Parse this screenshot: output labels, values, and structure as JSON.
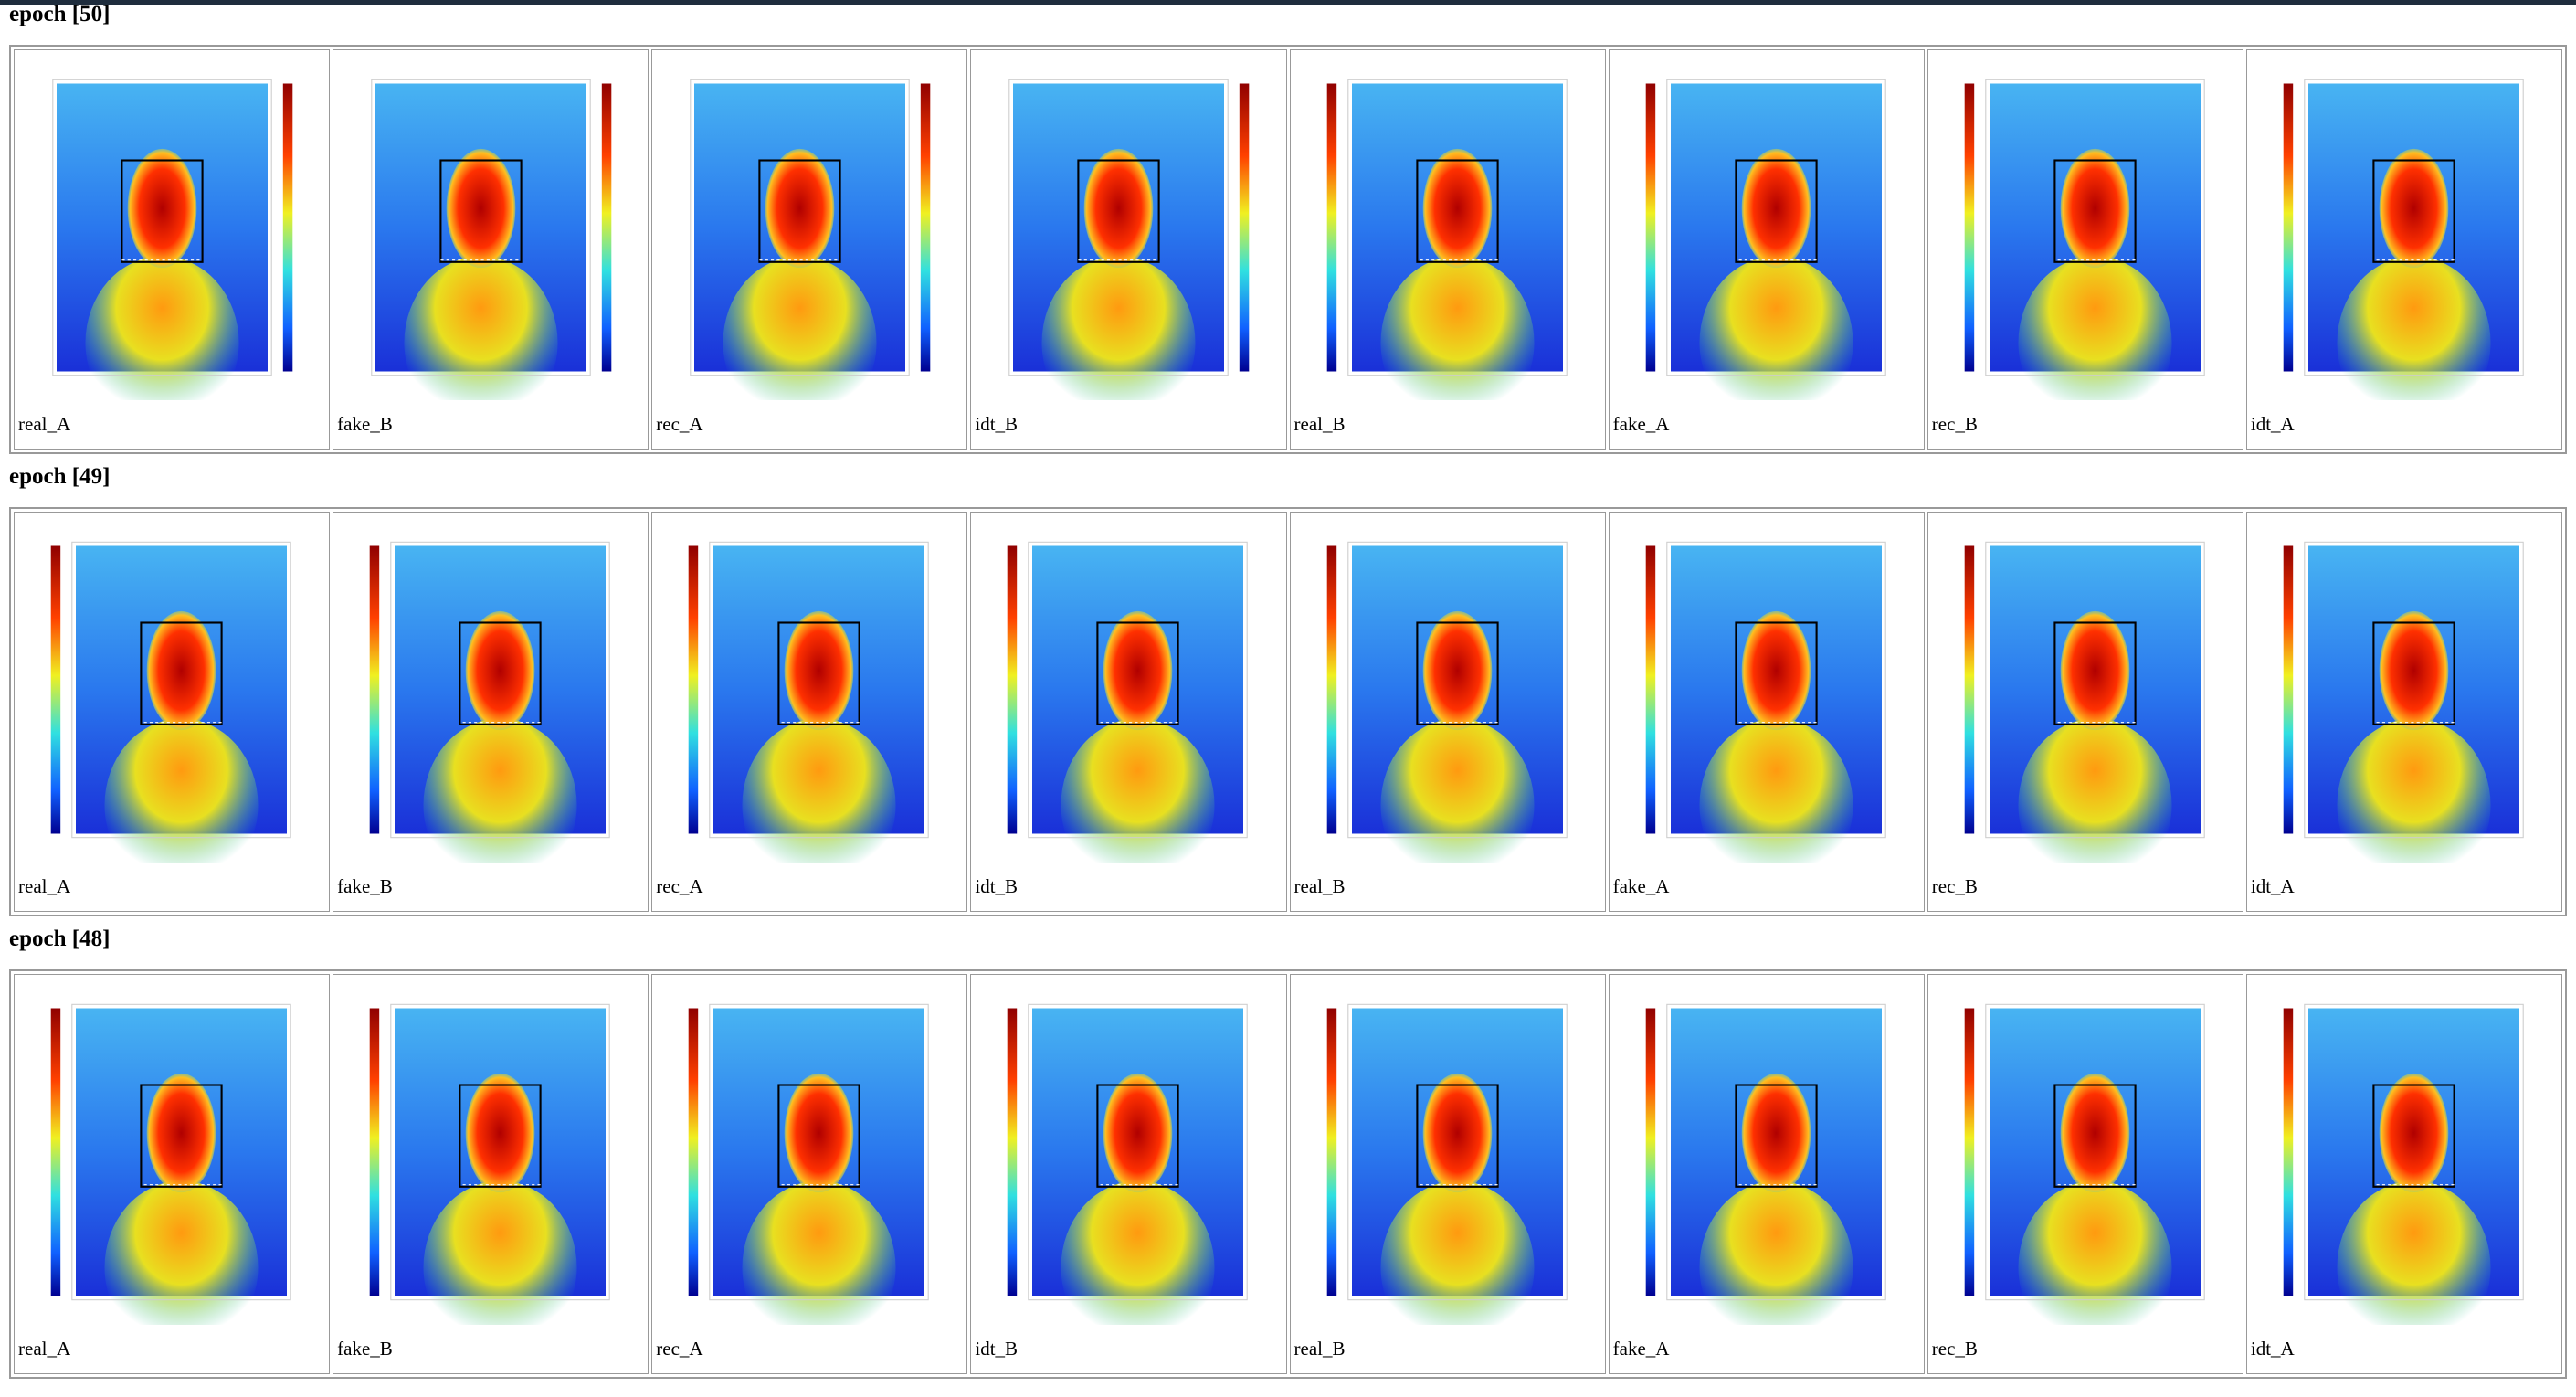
{
  "sections": [
    {
      "title": "epoch [50]",
      "images": [
        {
          "label": "real_A"
        },
        {
          "label": "fake_B"
        },
        {
          "label": "rec_A"
        },
        {
          "label": "idt_B"
        },
        {
          "label": "real_B"
        },
        {
          "label": "fake_A"
        },
        {
          "label": "rec_B"
        },
        {
          "label": "idt_A"
        }
      ]
    },
    {
      "title": "epoch [49]",
      "images": [
        {
          "label": "real_A"
        },
        {
          "label": "fake_B"
        },
        {
          "label": "rec_A"
        },
        {
          "label": "idt_B"
        },
        {
          "label": "real_B"
        },
        {
          "label": "fake_A"
        },
        {
          "label": "rec_B"
        },
        {
          "label": "idt_A"
        }
      ]
    },
    {
      "title": "epoch [48]",
      "images": [
        {
          "label": "real_A"
        },
        {
          "label": "fake_B"
        },
        {
          "label": "rec_A"
        },
        {
          "label": "idt_B"
        },
        {
          "label": "real_B"
        },
        {
          "label": "fake_A"
        },
        {
          "label": "rec_B"
        },
        {
          "label": "idt_A"
        }
      ]
    }
  ]
}
